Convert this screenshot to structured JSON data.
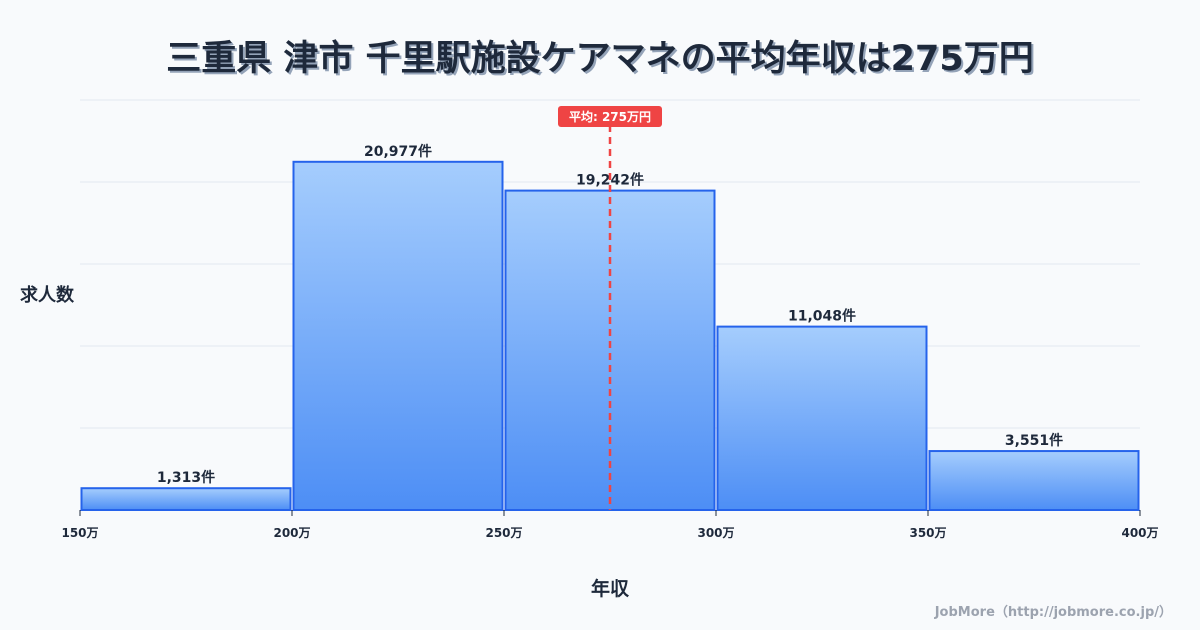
{
  "title": "三重県 津市 千里駅施設ケアマネの平均年収は275万円",
  "ylabel": "求人数",
  "xlabel": "年収",
  "footer": "JobMore（http://jobmore.co.jp/）",
  "average_label": "平均: 275万円",
  "colors": {
    "bar_top": "#a5cdfd",
    "bar_bottom": "#4d8ef5",
    "bar_border": "#2563eb",
    "avg_line": "#ef4444",
    "grid": "#e2e8f0",
    "text": "#1e293b"
  },
  "chart_data": {
    "type": "bar",
    "title": "三重県 津市 千里駅施設ケアマネの平均年収は275万円",
    "xlabel": "年収",
    "ylabel": "求人数",
    "categories": [
      "150万-200万",
      "200万-250万",
      "250万-300万",
      "300万-350万",
      "350万-400万"
    ],
    "bin_edges": [
      150,
      200,
      250,
      300,
      350,
      400
    ],
    "x_tick_labels": [
      "150万",
      "200万",
      "250万",
      "300万",
      "350万",
      "400万"
    ],
    "values": [
      1313,
      20977,
      19242,
      11048,
      3551
    ],
    "value_labels": [
      "1,313件",
      "20,977件",
      "19,242件",
      "11,048件",
      "3,551件"
    ],
    "average": 275,
    "average_label": "平均: 275万円",
    "xlim": [
      150,
      400
    ],
    "ylim": [
      0,
      24700
    ],
    "grid": true,
    "grid_lines": 5,
    "legend": "none"
  }
}
